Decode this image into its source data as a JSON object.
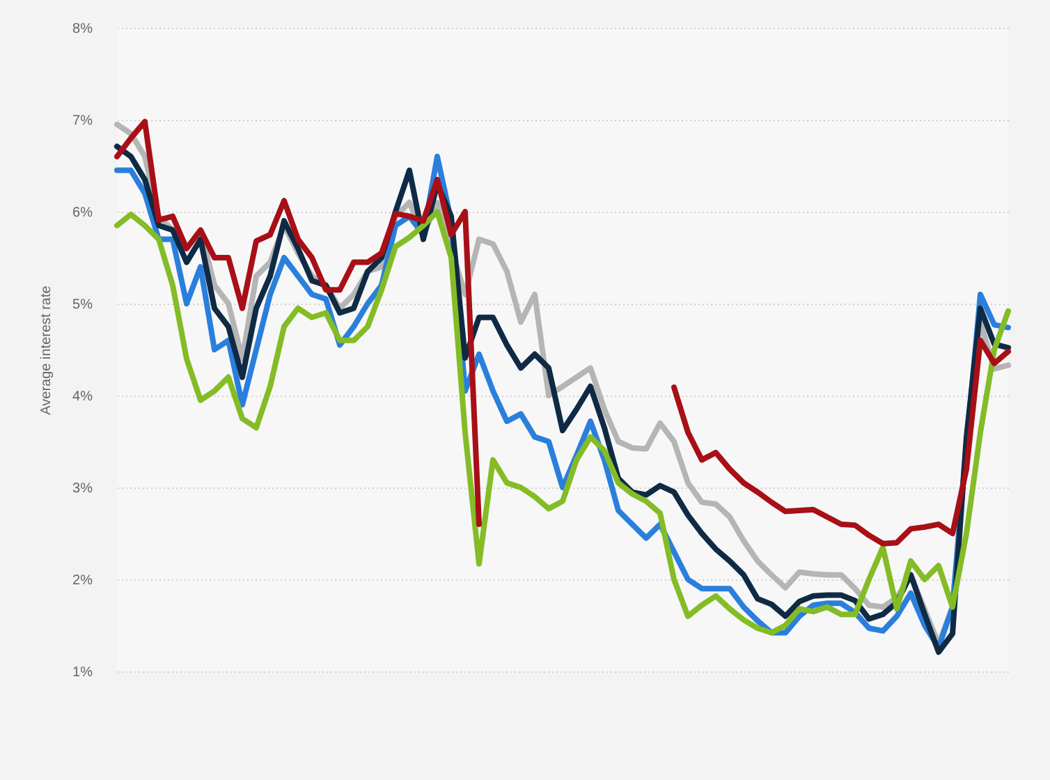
{
  "chart_data": {
    "type": "line",
    "ylabel": "Average interest rate",
    "categories": [
      null,
      null,
      null,
      null,
      null,
      null,
      null,
      null,
      null,
      null,
      null,
      null,
      null,
      null,
      null,
      null,
      null,
      null,
      null,
      null,
      null,
      null,
      null,
      null,
      null,
      null,
      null,
      null,
      null,
      null,
      null,
      null,
      null,
      null,
      null,
      null,
      null,
      null,
      null,
      null,
      null,
      null,
      null,
      null,
      null,
      null,
      null,
      null,
      null,
      null,
      null,
      null,
      null,
      null,
      null,
      null,
      null,
      null,
      null,
      null,
      null,
      null,
      null,
      null,
      null
    ],
    "ylim": [
      1,
      8
    ],
    "yticks": [
      {
        "value": 1,
        "label": "1%"
      },
      {
        "value": 2,
        "label": "2%"
      },
      {
        "value": 3,
        "label": "3%"
      },
      {
        "value": 4,
        "label": "4%"
      },
      {
        "value": 5,
        "label": "5%"
      },
      {
        "value": 6,
        "label": "6%"
      },
      {
        "value": 7,
        "label": "7%"
      },
      {
        "value": 8,
        "label": "8%"
      }
    ],
    "grid": "y",
    "legend": false,
    "marker": "none",
    "line_style": "solid",
    "series": [
      {
        "color": "#b5b5b5",
        "values": [
          6.95,
          6.85,
          6.6,
          5.95,
          5.8,
          5.6,
          5.8,
          5.2,
          5.0,
          4.4,
          5.3,
          5.45,
          5.85,
          5.55,
          5.3,
          5.2,
          4.95,
          5.1,
          5.35,
          5.4,
          5.95,
          6.1,
          5.75,
          6.1,
          5.6,
          5.1,
          5.7,
          5.65,
          5.35,
          4.8,
          5.1,
          4.0,
          4.1,
          4.2,
          4.3,
          3.85,
          3.5,
          3.43,
          3.42,
          3.7,
          3.5,
          3.05,
          2.84,
          2.82,
          2.68,
          2.42,
          2.2,
          2.05,
          1.91,
          2.08,
          2.06,
          2.05,
          2.05,
          1.9,
          1.72,
          1.7,
          1.8,
          2.05,
          1.67,
          1.3,
          1.7,
          3.5,
          4.8,
          4.29,
          4.33
        ]
      },
      {
        "color": "#2a7fdc",
        "values": [
          6.45,
          6.45,
          6.2,
          5.7,
          5.7,
          5.0,
          5.4,
          4.5,
          4.6,
          3.9,
          4.5,
          5.1,
          5.5,
          5.3,
          5.1,
          5.05,
          4.55,
          4.75,
          5.0,
          5.2,
          5.85,
          5.95,
          5.75,
          6.6,
          5.9,
          4.05,
          4.45,
          4.05,
          3.72,
          3.8,
          3.55,
          3.5,
          3.0,
          3.35,
          3.72,
          3.3,
          2.75,
          2.6,
          2.45,
          2.6,
          2.3,
          2.0,
          1.9,
          1.9,
          1.9,
          1.7,
          1.55,
          1.42,
          1.42,
          1.6,
          1.72,
          1.74,
          1.74,
          1.64,
          1.47,
          1.44,
          1.6,
          1.85,
          1.5,
          1.26,
          1.7,
          3.45,
          5.1,
          4.77,
          4.74
        ]
      },
      {
        "color": "#0f2a44",
        "values": [
          6.71,
          6.6,
          6.35,
          5.85,
          5.8,
          5.45,
          5.7,
          4.95,
          4.75,
          4.2,
          4.95,
          5.3,
          5.9,
          5.6,
          5.25,
          5.2,
          4.9,
          4.95,
          5.35,
          5.5,
          6.0,
          6.45,
          5.7,
          6.3,
          5.95,
          4.41,
          4.85,
          4.85,
          4.55,
          4.3,
          4.45,
          4.3,
          3.62,
          3.85,
          4.1,
          3.65,
          3.1,
          2.95,
          2.92,
          3.02,
          2.95,
          2.7,
          2.5,
          2.33,
          2.2,
          2.05,
          1.79,
          1.73,
          1.6,
          1.76,
          1.82,
          1.83,
          1.83,
          1.77,
          1.57,
          1.62,
          1.75,
          2.05,
          1.62,
          1.21,
          1.41,
          3.55,
          4.95,
          4.56,
          4.52
        ]
      },
      {
        "color": "#84bc26",
        "values": [
          5.85,
          5.97,
          5.85,
          5.7,
          5.2,
          4.4,
          3.95,
          4.05,
          4.2,
          3.75,
          3.65,
          4.1,
          4.75,
          4.95,
          4.85,
          4.9,
          4.6,
          4.6,
          4.75,
          5.15,
          5.62,
          5.72,
          5.85,
          6.0,
          5.5,
          3.6,
          2.17,
          3.3,
          3.05,
          3.0,
          2.9,
          2.77,
          2.85,
          3.3,
          3.55,
          3.4,
          3.05,
          2.93,
          2.85,
          2.72,
          2.0,
          1.6,
          1.72,
          1.82,
          1.68,
          1.56,
          1.47,
          1.42,
          1.5,
          1.68,
          1.65,
          1.7,
          1.62,
          1.62,
          2.0,
          2.35,
          1.68,
          2.2,
          2.0,
          2.15,
          1.7,
          2.5,
          3.6,
          4.5,
          4.92
        ]
      },
      {
        "color": "#a80f17",
        "values": [
          6.6,
          6.8,
          6.98,
          5.91,
          5.95,
          5.6,
          5.8,
          5.5,
          5.5,
          4.95,
          5.68,
          5.75,
          6.12,
          5.7,
          5.5,
          5.15,
          5.15,
          5.45,
          5.45,
          5.55,
          5.98,
          5.95,
          5.9,
          6.35,
          5.75,
          6.0,
          2.6,
          null,
          null,
          null,
          null,
          null,
          null,
          null,
          null,
          null,
          null,
          null,
          null,
          null,
          4.09,
          3.6,
          3.3,
          3.38,
          3.2,
          3.05,
          2.95,
          2.84,
          2.74,
          2.75,
          2.76,
          2.68,
          2.6,
          2.59,
          2.48,
          2.39,
          2.4,
          2.55,
          2.57,
          2.6,
          2.5,
          3.2,
          4.6,
          4.35,
          4.48
        ]
      }
    ]
  }
}
